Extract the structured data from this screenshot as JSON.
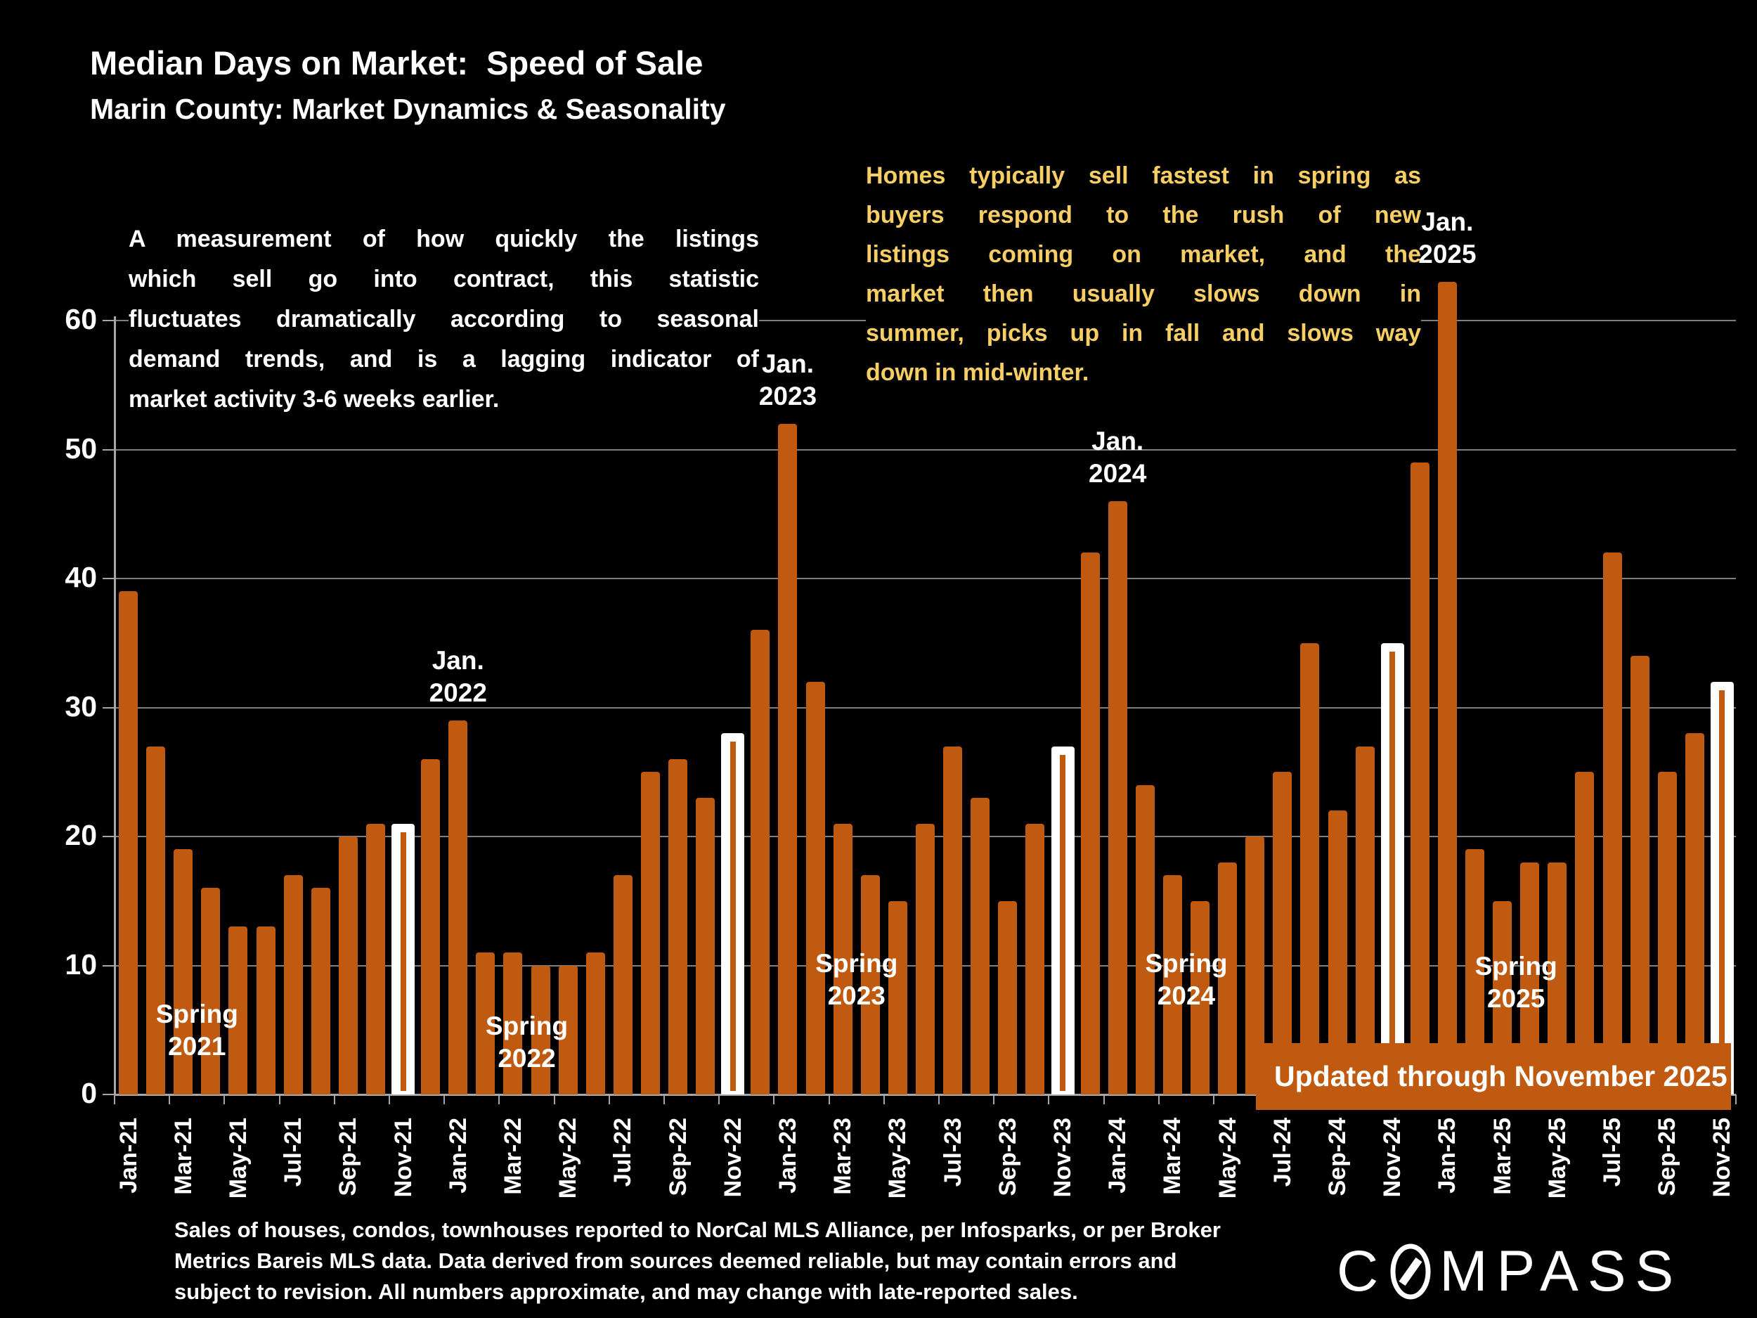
{
  "header": {
    "title": "Median Days on Market:  Speed of Sale",
    "subtitle": "Marin County: Market Dynamics & Seasonality"
  },
  "notes": {
    "left": {
      "lines": [
        "A measurement of how quickly the listings",
        "which sell go into contract, this statistic",
        "fluctuates dramatically according to seasonal",
        "demand trends, and is a lagging indicator of",
        "market activity 3-6 weeks earlier."
      ]
    },
    "right": {
      "lines": [
        "Homes typically sell fastest in spring as",
        "buyers respond to the rush of new",
        "listings coming on market, and the",
        "market then usually slows down in",
        "summer, picks up in fall and slows way",
        "down in mid-winter."
      ]
    }
  },
  "banner": {
    "text": "Updated through November 2025"
  },
  "footer": {
    "lines": [
      "Sales of houses, condos, townhouses reported to NorCal MLS Alliance, per Infosparks, or per Broker",
      "Metrics Bareis MLS data. Data derived from sources deemed reliable, but may contain errors and",
      "subject to revision. All numbers approximate, and may change with late-reported sales."
    ]
  },
  "logo": {
    "name": "COMPASS",
    "text_before": "C",
    "text_after": "MPASS"
  },
  "colors": {
    "background": "#000000",
    "bar": "#C05A11",
    "highlight_bar_outline": "#FFFFFF",
    "gold_text": "#F7CE63",
    "white_text": "#FFFFFF",
    "gridline": "#7F7F7F",
    "banner_bg": "#C05A11"
  },
  "chart_data": {
    "type": "bar",
    "title": "Median Days on Market:  Speed of Sale — Marin County: Market Dynamics & Seasonality",
    "xlabel": "",
    "ylabel": "",
    "ylim": [
      0,
      60
    ],
    "yticks": [
      0,
      10,
      20,
      30,
      40,
      50,
      60
    ],
    "grid": "horizontal",
    "x_tick_label_every": 2,
    "categories": [
      "Jan-21",
      "Feb-21",
      "Mar-21",
      "Apr-21",
      "May-21",
      "Jun-21",
      "Jul-21",
      "Aug-21",
      "Sep-21",
      "Oct-21",
      "Nov-21",
      "Dec-21",
      "Jan-22",
      "Feb-22",
      "Mar-22",
      "Apr-22",
      "May-22",
      "Jun-22",
      "Jul-22",
      "Aug-22",
      "Sep-22",
      "Oct-22",
      "Nov-22",
      "Dec-22",
      "Jan-23",
      "Feb-23",
      "Mar-23",
      "Apr-23",
      "May-23",
      "Jun-23",
      "Jul-23",
      "Aug-23",
      "Sep-23",
      "Oct-23",
      "Nov-23",
      "Dec-23",
      "Jan-24",
      "Feb-24",
      "Mar-24",
      "Apr-24",
      "May-24",
      "Jun-24",
      "Jul-24",
      "Aug-24",
      "Sep-24",
      "Oct-24",
      "Nov-24",
      "Dec-24",
      "Jan-25",
      "Feb-25",
      "Mar-25",
      "Apr-25",
      "May-25",
      "Jun-25",
      "Jul-25",
      "Aug-25",
      "Sep-25",
      "Oct-25",
      "Nov-25"
    ],
    "values": [
      39,
      27,
      19,
      16,
      13,
      13,
      17,
      16,
      20,
      21,
      21,
      26,
      29,
      11,
      11,
      10,
      10,
      11,
      17,
      25,
      26,
      23,
      28,
      36,
      52,
      32,
      21,
      17,
      15,
      21,
      27,
      23,
      15,
      21,
      27,
      42,
      46,
      24,
      17,
      15,
      18,
      20,
      25,
      35,
      22,
      27,
      35,
      49,
      63,
      19,
      15,
      18,
      18,
      25,
      42,
      34,
      25,
      28,
      32
    ],
    "highlighted_categories": [
      "Nov-21",
      "Nov-22",
      "Nov-23",
      "Nov-24",
      "Nov-25"
    ],
    "annotations": [
      {
        "id": "jan-2022",
        "kind": "jan",
        "anchor": "Jan-22",
        "lines": [
          "Jan.",
          "2022"
        ]
      },
      {
        "id": "jan-2023",
        "kind": "jan",
        "anchor": "Jan-23",
        "lines": [
          "Jan.",
          "2023"
        ]
      },
      {
        "id": "jan-2024",
        "kind": "jan",
        "anchor": "Jan-24",
        "lines": [
          "Jan.",
          "2024"
        ]
      },
      {
        "id": "jan-2025",
        "kind": "jan",
        "anchor": "Jan-25",
        "lines": [
          "Jan.",
          "2025"
        ]
      },
      {
        "id": "spring-2021",
        "kind": "spring",
        "anchor": "Mar-21",
        "lines": [
          "Spring",
          "2021"
        ]
      },
      {
        "id": "spring-2022",
        "kind": "spring",
        "anchor": "Mar-22",
        "lines": [
          "Spring",
          "2022"
        ]
      },
      {
        "id": "spring-2023",
        "kind": "spring",
        "anchor": "Mar-23",
        "lines": [
          "Spring",
          "2023"
        ]
      },
      {
        "id": "spring-2024",
        "kind": "spring",
        "anchor": "Mar-24",
        "lines": [
          "Spring",
          "2024"
        ]
      },
      {
        "id": "spring-2025",
        "kind": "spring",
        "anchor": "Mar-25",
        "lines": [
          "Spring",
          "2025"
        ]
      }
    ]
  }
}
